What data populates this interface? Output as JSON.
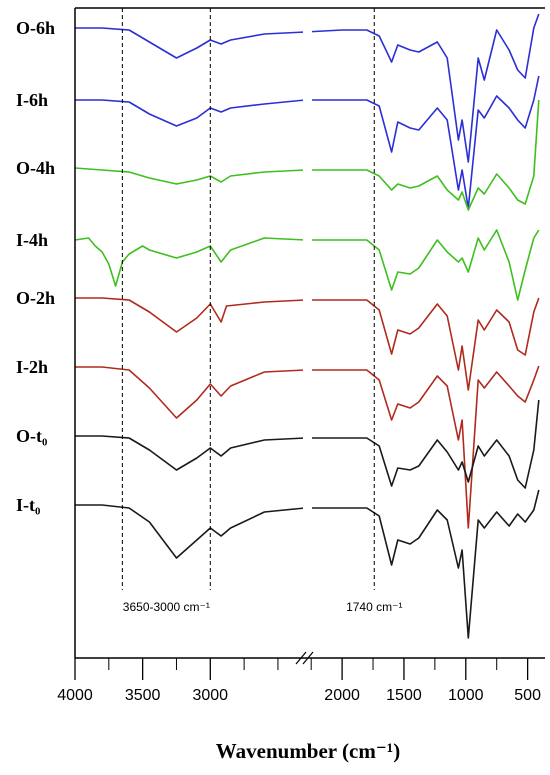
{
  "chart_data": {
    "type": "line",
    "xlabel": "Wavenumber (cm⁻¹)",
    "axis_break": true,
    "x_ticks": [
      "4000",
      "3500",
      "3000",
      "2000",
      "1500",
      "1000",
      "500"
    ],
    "annotations": [
      {
        "text": "3650-3000 cm⁻¹",
        "lines_at": [
          3650,
          3000
        ]
      },
      {
        "text": "1740 cm⁻¹",
        "lines_at": [
          1740
        ]
      }
    ],
    "series": [
      {
        "name": "O-6h",
        "color": "#2b2fd6",
        "points": [
          [
            4000,
            28
          ],
          [
            3800,
            28
          ],
          [
            3600,
            30
          ],
          [
            3450,
            42
          ],
          [
            3250,
            58
          ],
          [
            3100,
            48
          ],
          [
            3000,
            40
          ],
          [
            2920,
            44
          ],
          [
            2850,
            40
          ],
          [
            2600,
            34
          ],
          [
            2300,
            32
          ],
          [
            2000,
            30
          ],
          [
            1800,
            30
          ],
          [
            1700,
            36
          ],
          [
            1600,
            62
          ],
          [
            1550,
            45
          ],
          [
            1450,
            50
          ],
          [
            1380,
            52
          ],
          [
            1230,
            42
          ],
          [
            1150,
            58
          ],
          [
            1060,
            140
          ],
          [
            1030,
            120
          ],
          [
            980,
            162
          ],
          [
            900,
            58
          ],
          [
            850,
            80
          ],
          [
            750,
            30
          ],
          [
            650,
            50
          ],
          [
            580,
            70
          ],
          [
            520,
            78
          ],
          [
            450,
            28
          ],
          [
            410,
            14
          ]
        ]
      },
      {
        "name": "I-6h",
        "color": "#2b2fd6",
        "points": [
          [
            4000,
            100
          ],
          [
            3800,
            100
          ],
          [
            3600,
            102
          ],
          [
            3450,
            114
          ],
          [
            3250,
            126
          ],
          [
            3100,
            118
          ],
          [
            3000,
            108
          ],
          [
            2920,
            112
          ],
          [
            2850,
            108
          ],
          [
            2600,
            104
          ],
          [
            2300,
            100
          ],
          [
            2000,
            100
          ],
          [
            1800,
            100
          ],
          [
            1700,
            106
          ],
          [
            1600,
            152
          ],
          [
            1550,
            122
          ],
          [
            1450,
            128
          ],
          [
            1380,
            130
          ],
          [
            1230,
            108
          ],
          [
            1150,
            120
          ],
          [
            1060,
            190
          ],
          [
            1030,
            170
          ],
          [
            980,
            208
          ],
          [
            900,
            110
          ],
          [
            850,
            118
          ],
          [
            750,
            96
          ],
          [
            650,
            108
          ],
          [
            580,
            120
          ],
          [
            520,
            128
          ],
          [
            450,
            100
          ],
          [
            410,
            76
          ]
        ]
      },
      {
        "name": "O-4h",
        "color": "#3fbf1f",
        "points": [
          [
            4000,
            168
          ],
          [
            3800,
            170
          ],
          [
            3600,
            172
          ],
          [
            3450,
            178
          ],
          [
            3250,
            184
          ],
          [
            3100,
            180
          ],
          [
            3000,
            176
          ],
          [
            2920,
            182
          ],
          [
            2850,
            176
          ],
          [
            2600,
            172
          ],
          [
            2300,
            170
          ],
          [
            2000,
            170
          ],
          [
            1800,
            170
          ],
          [
            1700,
            176
          ],
          [
            1600,
            190
          ],
          [
            1550,
            184
          ],
          [
            1450,
            188
          ],
          [
            1380,
            186
          ],
          [
            1230,
            176
          ],
          [
            1150,
            190
          ],
          [
            1060,
            200
          ],
          [
            1030,
            192
          ],
          [
            980,
            210
          ],
          [
            900,
            188
          ],
          [
            850,
            194
          ],
          [
            750,
            174
          ],
          [
            650,
            188
          ],
          [
            580,
            200
          ],
          [
            520,
            204
          ],
          [
            450,
            176
          ],
          [
            410,
            100
          ]
        ]
      },
      {
        "name": "I-4h",
        "color": "#3fbf1f",
        "points": [
          [
            4000,
            240
          ],
          [
            3900,
            238
          ],
          [
            3850,
            246
          ],
          [
            3800,
            252
          ],
          [
            3750,
            264
          ],
          [
            3700,
            286
          ],
          [
            3650,
            262
          ],
          [
            3600,
            254
          ],
          [
            3500,
            246
          ],
          [
            3450,
            250
          ],
          [
            3300,
            256
          ],
          [
            3250,
            258
          ],
          [
            3100,
            252
          ],
          [
            3000,
            246
          ],
          [
            2920,
            262
          ],
          [
            2850,
            250
          ],
          [
            2600,
            238
          ],
          [
            2300,
            240
          ],
          [
            2000,
            240
          ],
          [
            1800,
            240
          ],
          [
            1700,
            250
          ],
          [
            1600,
            290
          ],
          [
            1550,
            272
          ],
          [
            1450,
            274
          ],
          [
            1380,
            268
          ],
          [
            1230,
            240
          ],
          [
            1150,
            252
          ],
          [
            1060,
            262
          ],
          [
            1030,
            258
          ],
          [
            980,
            272
          ],
          [
            900,
            238
          ],
          [
            850,
            250
          ],
          [
            750,
            230
          ],
          [
            650,
            262
          ],
          [
            580,
            300
          ],
          [
            520,
            270
          ],
          [
            450,
            238
          ],
          [
            410,
            230
          ]
        ]
      },
      {
        "name": "O-2h",
        "color": "#b02a1e",
        "points": [
          [
            4000,
            298
          ],
          [
            3800,
            298
          ],
          [
            3600,
            300
          ],
          [
            3450,
            312
          ],
          [
            3250,
            332
          ],
          [
            3100,
            318
          ],
          [
            3000,
            304
          ],
          [
            2920,
            322
          ],
          [
            2880,
            306
          ],
          [
            2600,
            302
          ],
          [
            2300,
            300
          ],
          [
            2000,
            300
          ],
          [
            1800,
            300
          ],
          [
            1700,
            310
          ],
          [
            1600,
            354
          ],
          [
            1550,
            330
          ],
          [
            1450,
            334
          ],
          [
            1380,
            328
          ],
          [
            1230,
            304
          ],
          [
            1150,
            316
          ],
          [
            1060,
            370
          ],
          [
            1030,
            346
          ],
          [
            980,
            390
          ],
          [
            900,
            320
          ],
          [
            850,
            330
          ],
          [
            750,
            310
          ],
          [
            650,
            322
          ],
          [
            580,
            350
          ],
          [
            520,
            355
          ],
          [
            450,
            312
          ],
          [
            410,
            298
          ]
        ]
      },
      {
        "name": "I-2h",
        "color": "#b02a1e",
        "points": [
          [
            4000,
            367
          ],
          [
            3800,
            367
          ],
          [
            3600,
            370
          ],
          [
            3450,
            388
          ],
          [
            3250,
            418
          ],
          [
            3100,
            400
          ],
          [
            3000,
            384
          ],
          [
            2920,
            396
          ],
          [
            2850,
            386
          ],
          [
            2600,
            372
          ],
          [
            2300,
            370
          ],
          [
            2000,
            370
          ],
          [
            1800,
            370
          ],
          [
            1700,
            380
          ],
          [
            1600,
            420
          ],
          [
            1550,
            404
          ],
          [
            1450,
            408
          ],
          [
            1380,
            402
          ],
          [
            1230,
            376
          ],
          [
            1150,
            386
          ],
          [
            1060,
            440
          ],
          [
            1030,
            420
          ],
          [
            980,
            528
          ],
          [
            900,
            380
          ],
          [
            850,
            388
          ],
          [
            750,
            372
          ],
          [
            650,
            386
          ],
          [
            580,
            396
          ],
          [
            520,
            402
          ],
          [
            450,
            380
          ],
          [
            410,
            366
          ]
        ]
      },
      {
        "name": "O-t₀",
        "color": "#1a1a1a",
        "points": [
          [
            4000,
            436
          ],
          [
            3800,
            436
          ],
          [
            3600,
            438
          ],
          [
            3450,
            450
          ],
          [
            3250,
            470
          ],
          [
            3100,
            458
          ],
          [
            3000,
            448
          ],
          [
            2920,
            456
          ],
          [
            2850,
            448
          ],
          [
            2600,
            440
          ],
          [
            2300,
            438
          ],
          [
            2000,
            438
          ],
          [
            1800,
            438
          ],
          [
            1700,
            446
          ],
          [
            1600,
            486
          ],
          [
            1550,
            468
          ],
          [
            1450,
            470
          ],
          [
            1380,
            466
          ],
          [
            1230,
            440
          ],
          [
            1150,
            452
          ],
          [
            1060,
            470
          ],
          [
            1030,
            462
          ],
          [
            980,
            482
          ],
          [
            900,
            446
          ],
          [
            850,
            456
          ],
          [
            750,
            440
          ],
          [
            650,
            456
          ],
          [
            580,
            480
          ],
          [
            520,
            488
          ],
          [
            450,
            450
          ],
          [
            410,
            400
          ]
        ]
      },
      {
        "name": "I-t₀",
        "color": "#1a1a1a",
        "points": [
          [
            4000,
            505
          ],
          [
            3800,
            505
          ],
          [
            3600,
            508
          ],
          [
            3450,
            522
          ],
          [
            3250,
            558
          ],
          [
            3100,
            540
          ],
          [
            3000,
            528
          ],
          [
            2920,
            536
          ],
          [
            2850,
            528
          ],
          [
            2600,
            512
          ],
          [
            2300,
            508
          ],
          [
            2000,
            508
          ],
          [
            1800,
            508
          ],
          [
            1700,
            516
          ],
          [
            1600,
            565
          ],
          [
            1550,
            540
          ],
          [
            1450,
            544
          ],
          [
            1380,
            538
          ],
          [
            1230,
            510
          ],
          [
            1150,
            520
          ],
          [
            1060,
            568
          ],
          [
            1030,
            550
          ],
          [
            980,
            638
          ],
          [
            900,
            520
          ],
          [
            850,
            528
          ],
          [
            750,
            512
          ],
          [
            650,
            526
          ],
          [
            580,
            514
          ],
          [
            520,
            522
          ],
          [
            450,
            510
          ],
          [
            410,
            490
          ]
        ]
      }
    ]
  }
}
